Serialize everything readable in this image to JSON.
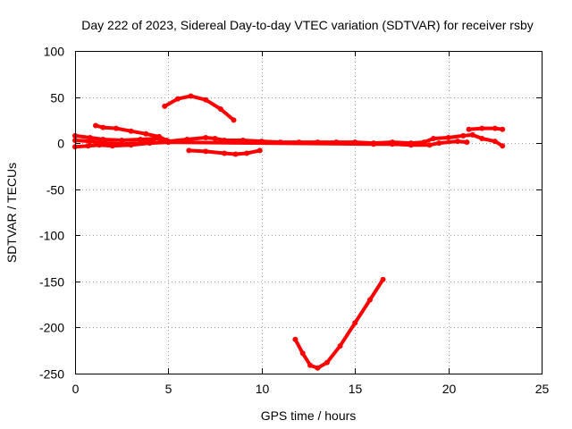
{
  "chart_data": {
    "type": "scatter",
    "title": "Day 222 of 2023, Sidereal Day-to-day VTEC variation (SDTVAR) for receiver rsby",
    "xlabel": "GPS time / hours",
    "ylabel": "SDTVAR / TECUs",
    "xlim": [
      0,
      25
    ],
    "ylim": [
      -250,
      100
    ],
    "xticks": [
      0,
      5,
      10,
      15,
      20,
      25
    ],
    "xtick_labels": [
      "0",
      "5",
      "10",
      "15",
      "20",
      "25"
    ],
    "yticks": [
      -250,
      -200,
      -150,
      -100,
      -50,
      0,
      50,
      100
    ],
    "ytick_labels": [
      "-250",
      "-200",
      "-150",
      "-100",
      "-50",
      "0",
      "50",
      "100"
    ],
    "grid": true,
    "color": "#ff0000",
    "series": [
      {
        "points": [
          [
            4.8,
            40
          ],
          [
            5.5,
            48
          ],
          [
            6.2,
            51
          ],
          [
            7.0,
            47
          ],
          [
            7.8,
            37
          ],
          [
            8.5,
            25
          ]
        ]
      },
      {
        "points": [
          [
            11.8,
            -213
          ],
          [
            12.2,
            -228
          ],
          [
            12.6,
            -241
          ],
          [
            13.0,
            -244
          ],
          [
            13.5,
            -238
          ],
          [
            14.2,
            -220
          ],
          [
            15.0,
            -195
          ],
          [
            15.8,
            -170
          ],
          [
            16.5,
            -148
          ]
        ]
      },
      {
        "points": [
          [
            1.1,
            19
          ],
          [
            1.5,
            17
          ],
          [
            2.2,
            16
          ],
          [
            3.0,
            13
          ],
          [
            3.8,
            10
          ],
          [
            4.5,
            7
          ],
          [
            4.9,
            3
          ]
        ]
      },
      {
        "points": [
          [
            0.0,
            8
          ],
          [
            0.8,
            6
          ],
          [
            1.5,
            4
          ],
          [
            2.5,
            3
          ],
          [
            3.5,
            4
          ],
          [
            4.5,
            5
          ],
          [
            5.0,
            2
          ],
          [
            6.0,
            4
          ],
          [
            7.0,
            6
          ],
          [
            7.5,
            5
          ],
          [
            8.0,
            3
          ],
          [
            9.0,
            3
          ],
          [
            10.0,
            2
          ],
          [
            11.0,
            1
          ],
          [
            12.0,
            1
          ],
          [
            13.0,
            1
          ],
          [
            14.0,
            1
          ],
          [
            15.0,
            1
          ],
          [
            16.0,
            0
          ],
          [
            17.0,
            1
          ],
          [
            18.0,
            0
          ],
          [
            18.7,
            1
          ],
          [
            19.2,
            5
          ],
          [
            20.0,
            6
          ],
          [
            20.8,
            8
          ],
          [
            21.3,
            9
          ],
          [
            21.8,
            5
          ],
          [
            22.5,
            2
          ],
          [
            22.9,
            -3
          ]
        ]
      },
      {
        "points": [
          [
            0.0,
            -4
          ],
          [
            0.7,
            -3
          ],
          [
            1.3,
            -2
          ],
          [
            2.0,
            -3
          ],
          [
            3.0,
            -2
          ],
          [
            4.0,
            0
          ],
          [
            5.0,
            1
          ],
          [
            16.0,
            -1
          ],
          [
            17.0,
            -1
          ],
          [
            18.0,
            -2
          ],
          [
            19.0,
            -2
          ],
          [
            19.5,
            0
          ],
          [
            20.5,
            2
          ],
          [
            21.0,
            1
          ]
        ]
      },
      {
        "points": [
          [
            0.0,
            3
          ],
          [
            0.8,
            2
          ],
          [
            1.6,
            0
          ],
          [
            2.5,
            -1
          ],
          [
            3.5,
            0
          ],
          [
            4.2,
            3
          ]
        ]
      },
      {
        "points": [
          [
            6.1,
            -8
          ],
          [
            7.0,
            -9
          ],
          [
            8.0,
            -11
          ],
          [
            8.6,
            -12
          ],
          [
            9.2,
            -11
          ],
          [
            9.9,
            -8
          ]
        ]
      },
      {
        "points": [
          [
            21.1,
            15
          ],
          [
            21.8,
            16
          ],
          [
            22.5,
            16
          ],
          [
            22.9,
            15
          ]
        ]
      }
    ]
  }
}
